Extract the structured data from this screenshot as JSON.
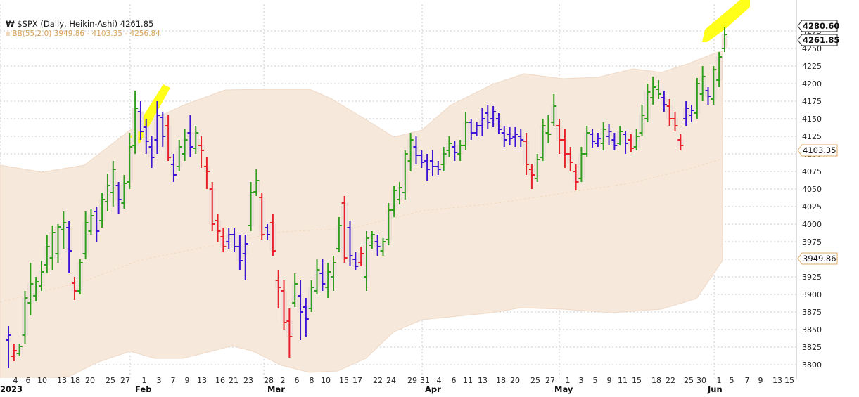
{
  "legend": {
    "symbol_line": "$SPX (Daily, Heikin-Ashi) 4261.85",
    "bb_line": "BB(55,2.0) 3949.86 - 4103.35 - 4256.84"
  },
  "colors": {
    "up": "#2e9e1c",
    "down": "#e8202a",
    "neutral_purple": "#3c14d6",
    "band_fill": "#f7e8dc",
    "band_edge": "#efd9c6",
    "highlight": "#ffff00"
  },
  "price_tags": [
    {
      "label": "4280.60",
      "value": 4280.6,
      "style": "bold"
    },
    {
      "label": "4261.85",
      "value": 4261.85,
      "style": "bold"
    },
    {
      "label": "4103.35",
      "value": 4103.35,
      "style": "light"
    },
    {
      "label": "3949.86",
      "value": 3949.86,
      "style": "light"
    }
  ],
  "chart_data": {
    "type": "heikin-ashi-ohlc",
    "y_ticks": [
      "3800",
      "3825",
      "3850",
      "3875",
      "3900",
      "3925",
      "3950",
      "3975",
      "4000",
      "4025",
      "4050",
      "4075",
      "4100",
      "4125",
      "4150",
      "4175",
      "4200",
      "4225",
      "4250",
      "4275"
    ],
    "ylim": [
      3785,
      4290
    ],
    "x_day_labels": [
      "4",
      "6",
      "10",
      "13",
      "18",
      "20",
      "25",
      "27",
      "1",
      "3",
      "7",
      "9",
      "13",
      "16",
      "21",
      "23",
      "28",
      "2",
      "6",
      "8",
      "10",
      "15",
      "17",
      "22",
      "24",
      "29",
      "31",
      "4",
      "6",
      "11",
      "13",
      "18",
      "20",
      "25",
      "27",
      "1",
      "3",
      "5",
      "9",
      "11",
      "15",
      "18",
      "22",
      "25",
      "30",
      "1",
      "5",
      "7",
      "9",
      "13",
      "15"
    ],
    "x_months": [
      "2023",
      "Feb",
      "Mar",
      "Apr",
      "May",
      "Jun"
    ],
    "grid": true,
    "bollinger": {
      "period": 55,
      "stddev": 2.0,
      "lower": 3949.86,
      "middle": 4103.35,
      "upper": 4256.84
    },
    "bars": [
      {
        "h": 3855,
        "l": 3795,
        "o": 3835,
        "c": 3842,
        "col": "purple"
      },
      {
        "h": 3830,
        "l": 3805,
        "o": 3812,
        "c": 3820,
        "col": "down"
      },
      {
        "h": 3830,
        "l": 3812,
        "o": 3816,
        "c": 3826,
        "col": "up"
      },
      {
        "h": 3905,
        "l": 3830,
        "o": 3842,
        "c": 3895,
        "col": "up"
      },
      {
        "h": 3945,
        "l": 3870,
        "o": 3888,
        "c": 3915,
        "col": "up"
      },
      {
        "h": 3925,
        "l": 3890,
        "o": 3898,
        "c": 3918,
        "col": "up"
      },
      {
        "h": 3948,
        "l": 3905,
        "o": 3912,
        "c": 3932,
        "col": "up"
      },
      {
        "h": 3985,
        "l": 3930,
        "o": 3942,
        "c": 3968,
        "col": "up"
      },
      {
        "h": 3998,
        "l": 3935,
        "o": 3952,
        "c": 3988,
        "col": "up"
      },
      {
        "h": 4000,
        "l": 3945,
        "o": 3958,
        "c": 3996,
        "col": "up"
      },
      {
        "h": 4018,
        "l": 3965,
        "o": 3992,
        "c": 4002,
        "col": "up"
      },
      {
        "h": 4005,
        "l": 3930,
        "o": 3995,
        "c": 3962,
        "col": "purple"
      },
      {
        "h": 3925,
        "l": 3892,
        "o": 3916,
        "c": 3905,
        "col": "down"
      },
      {
        "h": 3950,
        "l": 3900,
        "o": 3905,
        "c": 3945,
        "col": "up"
      },
      {
        "h": 4018,
        "l": 3950,
        "o": 3958,
        "c": 4002,
        "col": "up"
      },
      {
        "h": 4022,
        "l": 3985,
        "o": 3990,
        "c": 4012,
        "col": "up"
      },
      {
        "h": 4025,
        "l": 3975,
        "o": 4018,
        "c": 3990,
        "col": "purple"
      },
      {
        "h": 4045,
        "l": 3995,
        "o": 4005,
        "c": 4035,
        "col": "up"
      },
      {
        "h": 4072,
        "l": 4018,
        "o": 4032,
        "c": 4055,
        "col": "up"
      },
      {
        "h": 4090,
        "l": 4025,
        "o": 4045,
        "c": 4078,
        "col": "up"
      },
      {
        "h": 4060,
        "l": 4015,
        "o": 4055,
        "c": 4035,
        "col": "purple"
      },
      {
        "h": 4070,
        "l": 4022,
        "o": 4030,
        "c": 4058,
        "col": "up"
      },
      {
        "h": 4130,
        "l": 4050,
        "o": 4060,
        "c": 4110,
        "col": "up"
      },
      {
        "h": 4190,
        "l": 4100,
        "o": 4112,
        "c": 4165,
        "col": "up"
      },
      {
        "h": 4175,
        "l": 4120,
        "o": 4160,
        "c": 4132,
        "col": "purple"
      },
      {
        "h": 4150,
        "l": 4100,
        "o": 4138,
        "c": 4118,
        "col": "purple"
      },
      {
        "h": 4125,
        "l": 4080,
        "o": 4110,
        "c": 4095,
        "col": "purple"
      },
      {
        "h": 4175,
        "l": 4100,
        "o": 4120,
        "c": 4155,
        "col": "purple"
      },
      {
        "h": 4160,
        "l": 4110,
        "o": 4152,
        "c": 4125,
        "col": "purple"
      },
      {
        "h": 4155,
        "l": 4090,
        "o": 4140,
        "c": 4095,
        "col": "down"
      },
      {
        "h": 4100,
        "l": 4060,
        "o": 4085,
        "c": 4070,
        "col": "purple"
      },
      {
        "h": 4120,
        "l": 4075,
        "o": 4082,
        "c": 4110,
        "col": "up"
      },
      {
        "h": 4135,
        "l": 4090,
        "o": 4100,
        "c": 4120,
        "col": "up"
      },
      {
        "h": 4155,
        "l": 4095,
        "o": 4130,
        "c": 4110,
        "col": "purple"
      },
      {
        "h": 4140,
        "l": 4100,
        "o": 4108,
        "c": 4130,
        "col": "up"
      },
      {
        "h": 4125,
        "l": 4080,
        "o": 4112,
        "c": 4105,
        "col": "down"
      },
      {
        "h": 4095,
        "l": 4050,
        "o": 4082,
        "c": 4075,
        "col": "down"
      },
      {
        "h": 4060,
        "l": 3990,
        "o": 4050,
        "c": 4000,
        "col": "down"
      },
      {
        "h": 4015,
        "l": 3975,
        "o": 4005,
        "c": 3990,
        "col": "down"
      },
      {
        "h": 3995,
        "l": 3960,
        "o": 3982,
        "c": 3968,
        "col": "down"
      },
      {
        "h": 3995,
        "l": 3965,
        "o": 3975,
        "c": 3985,
        "col": "purple"
      },
      {
        "h": 3995,
        "l": 3960,
        "o": 3985,
        "c": 3968,
        "col": "purple"
      },
      {
        "h": 3985,
        "l": 3935,
        "o": 3968,
        "c": 3948,
        "col": "purple"
      },
      {
        "h": 3985,
        "l": 3920,
        "o": 3958,
        "c": 3972,
        "col": "purple"
      },
      {
        "h": 4060,
        "l": 3990,
        "o": 3998,
        "c": 4045,
        "col": "up"
      },
      {
        "h": 4078,
        "l": 4040,
        "o": 4046,
        "c": 4062,
        "col": "up"
      },
      {
        "h": 4045,
        "l": 3978,
        "o": 4038,
        "c": 3985,
        "col": "down"
      },
      {
        "h": 4000,
        "l": 3978,
        "o": 3995,
        "c": 3985,
        "col": "purple"
      },
      {
        "h": 4015,
        "l": 3955,
        "o": 4002,
        "c": 3962,
        "col": "down"
      },
      {
        "h": 3935,
        "l": 3880,
        "o": 3920,
        "c": 3910,
        "col": "down"
      },
      {
        "h": 3920,
        "l": 3850,
        "o": 3905,
        "c": 3860,
        "col": "down"
      },
      {
        "h": 3880,
        "l": 3810,
        "o": 3862,
        "c": 3840,
        "col": "down"
      },
      {
        "h": 3930,
        "l": 3882,
        "o": 3888,
        "c": 3915,
        "col": "up"
      },
      {
        "h": 3920,
        "l": 3835,
        "o": 3898,
        "c": 3875,
        "col": "purple"
      },
      {
        "h": 3895,
        "l": 3840,
        "o": 3882,
        "c": 3865,
        "col": "purple"
      },
      {
        "h": 3920,
        "l": 3875,
        "o": 3880,
        "c": 3910,
        "col": "up"
      },
      {
        "h": 3950,
        "l": 3900,
        "o": 3905,
        "c": 3935,
        "col": "up"
      },
      {
        "h": 3950,
        "l": 3905,
        "o": 3930,
        "c": 3915,
        "col": "purple"
      },
      {
        "h": 3945,
        "l": 3895,
        "o": 3910,
        "c": 3932,
        "col": "up"
      },
      {
        "h": 3955,
        "l": 3905,
        "o": 3925,
        "c": 3945,
        "col": "up"
      },
      {
        "h": 4010,
        "l": 3960,
        "o": 3965,
        "c": 3998,
        "col": "up"
      },
      {
        "h": 4040,
        "l": 3945,
        "o": 4030,
        "c": 3952,
        "col": "down"
      },
      {
        "h": 4005,
        "l": 3940,
        "o": 3995,
        "c": 3955,
        "col": "purple"
      },
      {
        "h": 3960,
        "l": 3935,
        "o": 3950,
        "c": 3940,
        "col": "purple"
      },
      {
        "h": 3968,
        "l": 3940,
        "o": 3945,
        "c": 3958,
        "col": "down"
      },
      {
        "h": 3990,
        "l": 3905,
        "o": 3925,
        "c": 3980,
        "col": "up"
      },
      {
        "h": 3990,
        "l": 3965,
        "o": 3970,
        "c": 3985,
        "col": "up"
      },
      {
        "h": 3985,
        "l": 3955,
        "o": 3975,
        "c": 3968,
        "col": "purple"
      },
      {
        "h": 3980,
        "l": 3955,
        "o": 3962,
        "c": 3975,
        "col": "up"
      },
      {
        "h": 4030,
        "l": 3970,
        "o": 3978,
        "c": 4020,
        "col": "up"
      },
      {
        "h": 4055,
        "l": 4010,
        "o": 4020,
        "c": 4048,
        "col": "up"
      },
      {
        "h": 4060,
        "l": 4028,
        "o": 4035,
        "c": 4052,
        "col": "up"
      },
      {
        "h": 4105,
        "l": 4035,
        "o": 4045,
        "c": 4100,
        "col": "up"
      },
      {
        "h": 4130,
        "l": 4075,
        "o": 4090,
        "c": 4120,
        "col": "up"
      },
      {
        "h": 4125,
        "l": 4085,
        "o": 4110,
        "c": 4098,
        "col": "purple"
      },
      {
        "h": 4105,
        "l": 4080,
        "o": 4098,
        "c": 4088,
        "col": "purple"
      },
      {
        "h": 4100,
        "l": 4062,
        "o": 4090,
        "c": 4078,
        "col": "purple"
      },
      {
        "h": 4105,
        "l": 4068,
        "o": 4090,
        "c": 4082,
        "col": "purple"
      },
      {
        "h": 4090,
        "l": 4070,
        "o": 4082,
        "c": 4078,
        "col": "purple"
      },
      {
        "h": 4110,
        "l": 4075,
        "o": 4085,
        "c": 4100,
        "col": "up"
      },
      {
        "h": 4125,
        "l": 4095,
        "o": 4105,
        "c": 4115,
        "col": "up"
      },
      {
        "h": 4118,
        "l": 4090,
        "o": 4110,
        "c": 4102,
        "col": "purple"
      },
      {
        "h": 4120,
        "l": 4090,
        "o": 4100,
        "c": 4112,
        "col": "up"
      },
      {
        "h": 4160,
        "l": 4105,
        "o": 4112,
        "c": 4145,
        "col": "up"
      },
      {
        "h": 4150,
        "l": 4120,
        "o": 4145,
        "c": 4130,
        "col": "purple"
      },
      {
        "h": 4145,
        "l": 4125,
        "o": 4130,
        "c": 4140,
        "col": "purple"
      },
      {
        "h": 4165,
        "l": 4125,
        "o": 4140,
        "c": 4150,
        "col": "purple"
      },
      {
        "h": 4170,
        "l": 4135,
        "o": 4158,
        "c": 4145,
        "col": "purple"
      },
      {
        "h": 4168,
        "l": 4138,
        "o": 4150,
        "c": 4160,
        "col": "purple"
      },
      {
        "h": 4158,
        "l": 4128,
        "o": 4150,
        "c": 4135,
        "col": "purple"
      },
      {
        "h": 4140,
        "l": 4110,
        "o": 4130,
        "c": 4120,
        "col": "purple"
      },
      {
        "h": 4138,
        "l": 4112,
        "o": 4128,
        "c": 4122,
        "col": "purple"
      },
      {
        "h": 4138,
        "l": 4110,
        "o": 4124,
        "c": 4128,
        "col": "purple"
      },
      {
        "h": 4135,
        "l": 4110,
        "o": 4125,
        "c": 4120,
        "col": "purple"
      },
      {
        "h": 4130,
        "l": 4070,
        "o": 4118,
        "c": 4085,
        "col": "down"
      },
      {
        "h": 4085,
        "l": 4050,
        "o": 4078,
        "c": 4070,
        "col": "down"
      },
      {
        "h": 4100,
        "l": 4060,
        "o": 4065,
        "c": 4092,
        "col": "up"
      },
      {
        "h": 4150,
        "l": 4090,
        "o": 4095,
        "c": 4140,
        "col": "up"
      },
      {
        "h": 4155,
        "l": 4115,
        "o": 4130,
        "c": 4128,
        "col": "up"
      },
      {
        "h": 4185,
        "l": 4140,
        "o": 4145,
        "c": 4168,
        "col": "up"
      },
      {
        "h": 4150,
        "l": 4100,
        "o": 4140,
        "c": 4120,
        "col": "down"
      },
      {
        "h": 4135,
        "l": 4080,
        "o": 4120,
        "c": 4100,
        "col": "down"
      },
      {
        "h": 4110,
        "l": 4075,
        "o": 4100,
        "c": 4088,
        "col": "down"
      },
      {
        "h": 4085,
        "l": 4048,
        "o": 4075,
        "c": 4060,
        "col": "down"
      },
      {
        "h": 4110,
        "l": 4060,
        "o": 4065,
        "c": 4100,
        "col": "up"
      },
      {
        "h": 4140,
        "l": 4095,
        "o": 4100,
        "c": 4130,
        "col": "up"
      },
      {
        "h": 4135,
        "l": 4108,
        "o": 4128,
        "c": 4118,
        "col": "purple"
      },
      {
        "h": 4130,
        "l": 4110,
        "o": 4115,
        "c": 4122,
        "col": "purple"
      },
      {
        "h": 4145,
        "l": 4105,
        "o": 4115,
        "c": 4135,
        "col": "up"
      },
      {
        "h": 4142,
        "l": 4112,
        "o": 4125,
        "c": 4132,
        "col": "purple"
      },
      {
        "h": 4130,
        "l": 4105,
        "o": 4120,
        "c": 4112,
        "col": "purple"
      },
      {
        "h": 4140,
        "l": 4112,
        "o": 4115,
        "c": 4132,
        "col": "up"
      },
      {
        "h": 4132,
        "l": 4100,
        "o": 4128,
        "c": 4115,
        "col": "purple"
      },
      {
        "h": 4128,
        "l": 4102,
        "o": 4120,
        "c": 4108,
        "col": "down"
      },
      {
        "h": 4135,
        "l": 4105,
        "o": 4110,
        "c": 4125,
        "col": "up"
      },
      {
        "h": 4170,
        "l": 4125,
        "o": 4130,
        "c": 4155,
        "col": "up"
      },
      {
        "h": 4200,
        "l": 4145,
        "o": 4150,
        "c": 4188,
        "col": "up"
      },
      {
        "h": 4210,
        "l": 4170,
        "o": 4180,
        "c": 4195,
        "col": "up"
      },
      {
        "h": 4205,
        "l": 4178,
        "o": 4192,
        "c": 4185,
        "col": "up"
      },
      {
        "h": 4190,
        "l": 4160,
        "o": 4180,
        "c": 4170,
        "col": "purple"
      },
      {
        "h": 4178,
        "l": 4140,
        "o": 4168,
        "c": 4150,
        "col": "down"
      },
      {
        "h": 4160,
        "l": 4132,
        "o": 4150,
        "c": 4140,
        "col": "down"
      },
      {
        "h": 4128,
        "l": 4105,
        "o": 4120,
        "c": 4112,
        "col": "down"
      },
      {
        "h": 4175,
        "l": 4140,
        "o": 4150,
        "c": 4165,
        "col": "purple"
      },
      {
        "h": 4170,
        "l": 4145,
        "o": 4155,
        "c": 4162,
        "col": "purple"
      },
      {
        "h": 4208,
        "l": 4150,
        "o": 4158,
        "c": 4200,
        "col": "up"
      },
      {
        "h": 4225,
        "l": 4175,
        "o": 4185,
        "c": 4210,
        "col": "up"
      },
      {
        "h": 4195,
        "l": 4170,
        "o": 4190,
        "c": 4182,
        "col": "purple"
      },
      {
        "h": 4225,
        "l": 4170,
        "o": 4178,
        "c": 4220,
        "col": "up"
      },
      {
        "h": 4245,
        "l": 4195,
        "o": 4205,
        "c": 4238,
        "col": "up"
      },
      {
        "h": 4280,
        "l": 4245,
        "o": 4250,
        "c": 4270,
        "col": "up"
      }
    ]
  }
}
